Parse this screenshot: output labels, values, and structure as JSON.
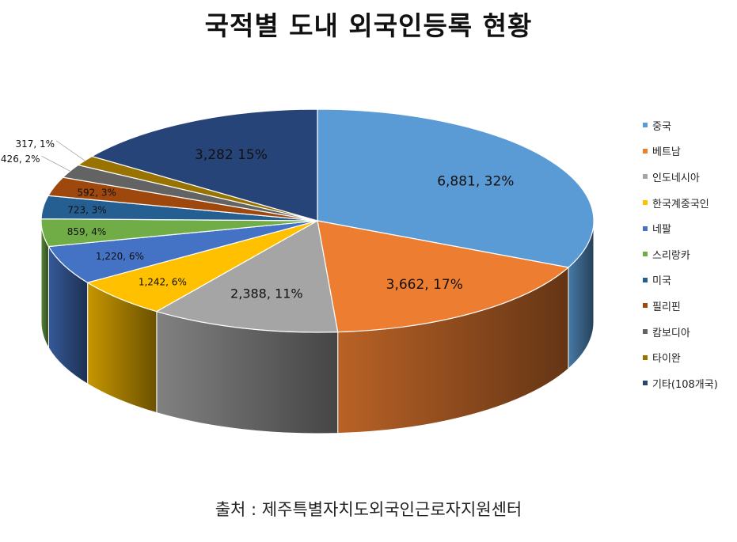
{
  "title": "국적별 도내 외국인등록 현황",
  "source": "출처 : 제주특별자치도외국인근로자지원센터",
  "chart_data": {
    "type": "pie",
    "title": "국적별 도내 외국인등록 현황",
    "legend_position": "right",
    "categories": [
      "중국",
      "베트남",
      "인도네시아",
      "한국계중국인",
      "네팔",
      "스리랑카",
      "미국",
      "필리핀",
      "캄보디아",
      "타이완",
      "기타(108개국)"
    ],
    "values": [
      6881,
      3662,
      2388,
      1242,
      1220,
      859,
      723,
      592,
      426,
      317,
      3282
    ],
    "labels": [
      "6,881,  32%",
      "3,662,  17%",
      "2,388,  11%",
      "1,242,  6%",
      "1,220,  6%",
      "859,  4%",
      "723,  3%",
      "592,  3%",
      "426,  2%",
      "317,  1%",
      "3,282  15%"
    ],
    "colors": [
      "#5b9bd5",
      "#ed7d31",
      "#a5a5a5",
      "#ffc000",
      "#4472c4",
      "#70ad47",
      "#255e91",
      "#9e480e",
      "#636363",
      "#997300",
      "#264478"
    ]
  }
}
